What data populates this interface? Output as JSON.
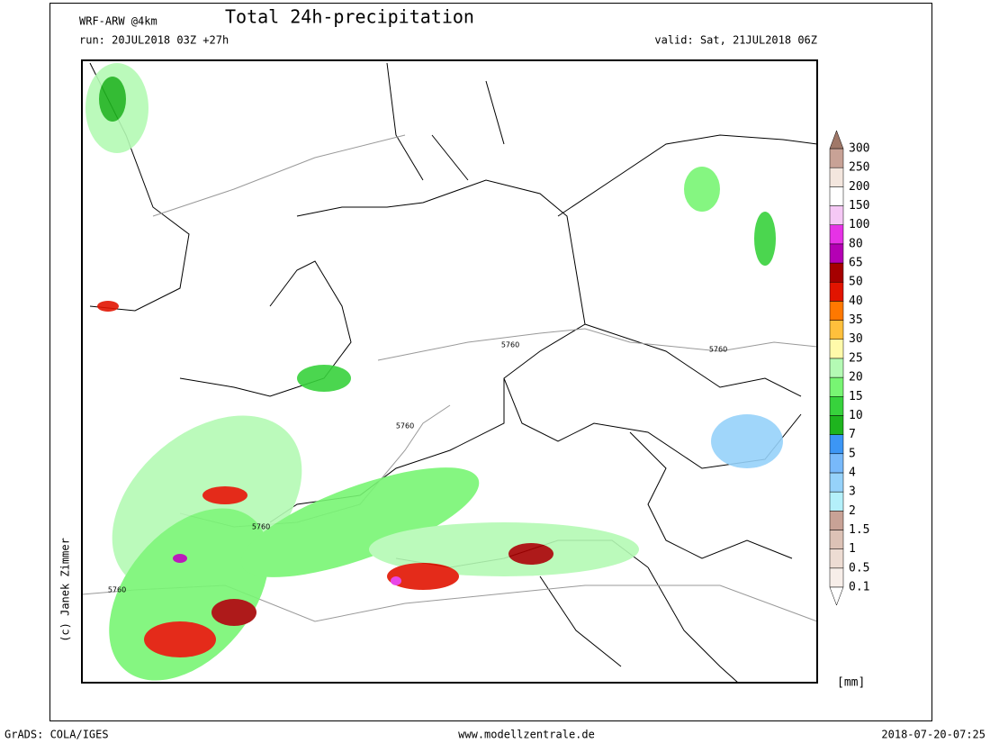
{
  "header": {
    "model": "WRF-ARW @4km",
    "title": "Total 24h-precipitation",
    "run": "run: 20JUL2018 03Z +27h",
    "valid": "valid: Sat, 21JUL2018 06Z"
  },
  "copyright": "(c) Janek Zimmer",
  "contour_labels": [
    "5760",
    "5760",
    "5760",
    "5760",
    "5760"
  ],
  "legend": {
    "unit": "[mm]",
    "labels": [
      "0.1",
      "0.5",
      "1",
      "1.5",
      "2",
      "3",
      "4",
      "5",
      "7",
      "10",
      "15",
      "20",
      "25",
      "30",
      "35",
      "40",
      "50",
      "65",
      "80",
      "100",
      "150",
      "200",
      "250",
      "300"
    ],
    "colors": [
      "#f7eee9",
      "#eddcd3",
      "#dcc2b6",
      "#c8a296",
      "#b4f0fa",
      "#96d2fa",
      "#78b9fa",
      "#3c96f5",
      "#1eb41e",
      "#37d23c",
      "#78f573",
      "#b4fab4",
      "#fffaaa",
      "#ffc03c",
      "#ff7800",
      "#e11400",
      "#a50000",
      "#b400b4",
      "#e632e6",
      "#f5c8f5",
      "#ffffff",
      "#f3e6de",
      "#c8a296"
    ],
    "top_color": "#a07868",
    "bottom_color": "#ffffff"
  },
  "footer": {
    "left": "GrADS: COLA/IGES",
    "center": "www.modellzentrale.de",
    "right": "2018-07-20-07:25"
  }
}
